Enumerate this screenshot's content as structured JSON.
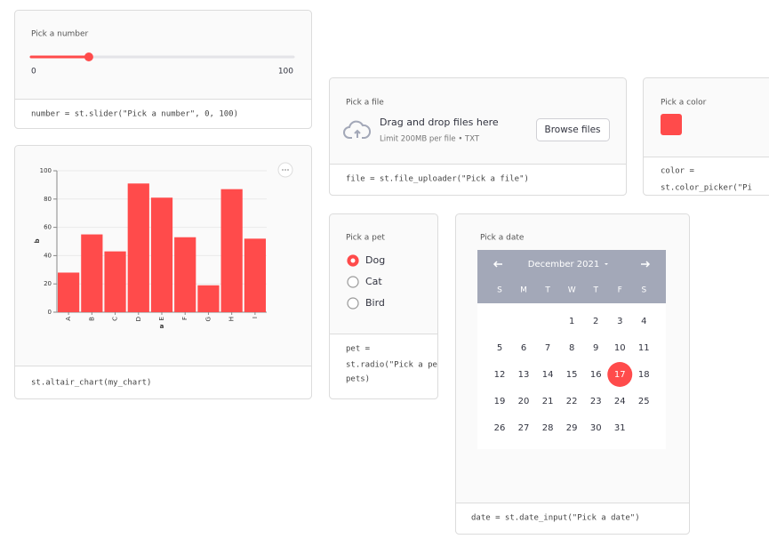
{
  "slider": {
    "label": "Pick a number",
    "min": 0,
    "max": 100,
    "value": 22,
    "code": "number = st.slider(\"Pick a number\", 0, 100)"
  },
  "chart_card": {
    "code": "st.altair_chart(my_chart)"
  },
  "chart_data": {
    "type": "bar",
    "categories": [
      "A",
      "B",
      "C",
      "D",
      "E",
      "F",
      "G",
      "H",
      "I"
    ],
    "values": [
      28,
      55,
      43,
      91,
      81,
      53,
      19,
      87,
      52
    ],
    "x_label": "a",
    "y_label": "b",
    "ylim": [
      0,
      100
    ],
    "yticks": [
      0,
      20,
      40,
      60,
      80,
      100
    ],
    "color": "#ff4b4b",
    "grid": true
  },
  "file_uploader": {
    "label": "Pick a file",
    "title": "Drag and drop files here",
    "limit": "Limit 200MB per file • TXT",
    "button": "Browse files",
    "code": "file = st.file_uploader(\"Pick a file\")"
  },
  "color_picker": {
    "label": "Pick a color",
    "color": "#ff4b4b",
    "code": [
      "color =",
      "st.color_picker(\"Pi"
    ]
  },
  "radio": {
    "label": "Pick a pet",
    "options": [
      "Dog",
      "Cat",
      "Bird"
    ],
    "selected": 0,
    "code": [
      "pet =",
      "st.radio(\"Pick a pe",
      "pets)"
    ]
  },
  "date_input": {
    "label": "Pick a date",
    "month": "December 2021",
    "weekdays": [
      "S",
      "M",
      "T",
      "W",
      "T",
      "F",
      "S"
    ],
    "days": [
      1,
      2,
      3,
      4,
      5,
      6,
      7,
      8,
      9,
      10,
      11,
      12,
      13,
      14,
      15,
      16,
      17,
      18,
      19,
      20,
      21,
      22,
      23,
      24,
      25,
      26,
      27,
      28,
      29,
      30,
      31
    ],
    "selected": 17,
    "code": "date = st.date_input(\"Pick a date\")"
  }
}
